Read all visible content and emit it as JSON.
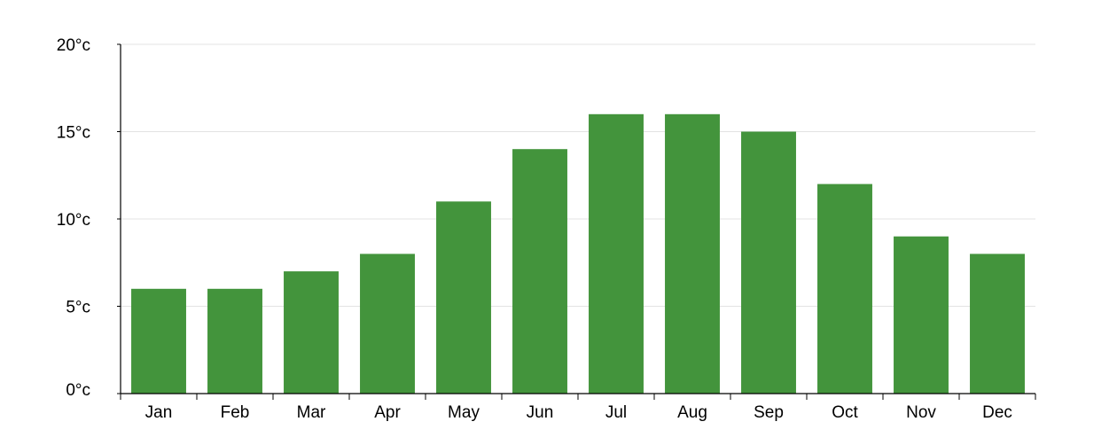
{
  "chart_data": {
    "type": "bar",
    "title": "",
    "xlabel": "",
    "ylabel": "",
    "categories": [
      "Jan",
      "Feb",
      "Mar",
      "Apr",
      "May",
      "Jun",
      "Jul",
      "Aug",
      "Sep",
      "Oct",
      "Nov",
      "Dec"
    ],
    "values": [
      6,
      6,
      7,
      8,
      11,
      14,
      16,
      16,
      15,
      12,
      9,
      8
    ],
    "ylim": [
      0,
      20
    ],
    "yticks": [
      0,
      5,
      10,
      15,
      20
    ],
    "ytick_labels": [
      "0°c",
      "5°c",
      "10°c",
      "15°c",
      "20°c"
    ],
    "grid": true,
    "bar_color": "#43943c",
    "grid_color": "#e3e3e3",
    "axis_color": "#000000"
  }
}
